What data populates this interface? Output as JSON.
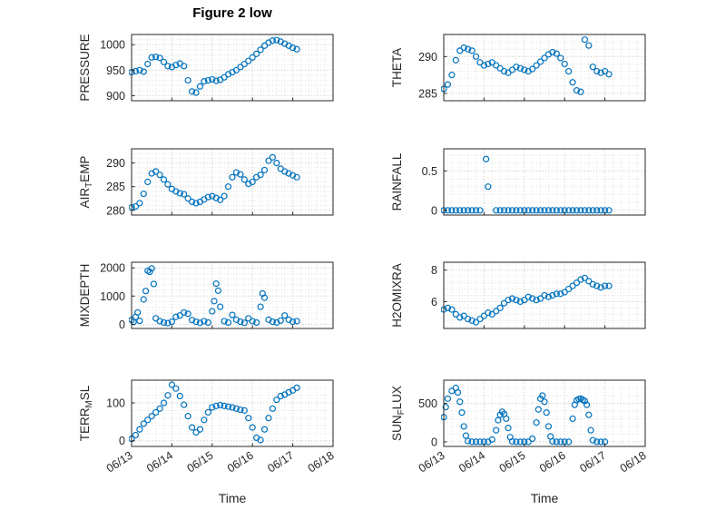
{
  "title": "Figure 2 low",
  "xlabel": "Time",
  "accent": "#0072BD",
  "axis_color": "#262626",
  "grid_major_color": "#c3c3c3",
  "grid_minor_color": "#e0e0e0",
  "xtick_labels": [
    "06/13",
    "06/14",
    "06/15",
    "06/16",
    "06/17",
    "06/18"
  ],
  "chart_data": [
    {
      "name": "pressure",
      "type": "scatter",
      "ylabel": "PRESSURE",
      "xlim": [
        13,
        18
      ],
      "ylim": [
        890,
        1020
      ],
      "yticks": [
        900,
        950,
        1000
      ],
      "x": [
        13.0,
        13.1,
        13.2,
        13.3,
        13.4,
        13.5,
        13.6,
        13.7,
        13.8,
        13.9,
        14.0,
        14.1,
        14.2,
        14.3,
        14.4,
        14.5,
        14.6,
        14.7,
        14.8,
        14.9,
        15.0,
        15.1,
        15.2,
        15.3,
        15.4,
        15.5,
        15.6,
        15.7,
        15.8,
        15.9,
        16.0,
        16.1,
        16.2,
        16.3,
        16.4,
        16.5,
        16.6,
        16.7,
        16.8,
        16.9,
        17.0,
        17.1
      ],
      "y": [
        946,
        948,
        950,
        947,
        962,
        975,
        976,
        974,
        966,
        958,
        956,
        960,
        963,
        958,
        930,
        908,
        906,
        918,
        928,
        930,
        932,
        929,
        931,
        936,
        942,
        946,
        950,
        956,
        962,
        968,
        975,
        982,
        990,
        998,
        1004,
        1008,
        1009,
        1006,
        1002,
        998,
        994,
        991
      ]
    },
    {
      "name": "theta",
      "type": "scatter",
      "ylabel": "THETA",
      "xlim": [
        13,
        18
      ],
      "ylim": [
        284,
        293
      ],
      "yticks": [
        285,
        290
      ],
      "x": [
        13.0,
        13.1,
        13.2,
        13.3,
        13.4,
        13.5,
        13.6,
        13.7,
        13.8,
        13.9,
        14.0,
        14.1,
        14.2,
        14.3,
        14.4,
        14.5,
        14.6,
        14.7,
        14.8,
        14.9,
        15.0,
        15.1,
        15.2,
        15.3,
        15.4,
        15.5,
        15.6,
        15.7,
        15.8,
        15.9,
        16.0,
        16.1,
        16.2,
        16.3,
        16.4,
        16.5,
        16.6,
        16.7,
        16.8,
        16.9,
        17.0,
        17.1
      ],
      "y": [
        285.6,
        286.2,
        287.5,
        289.5,
        290.8,
        291.2,
        291.0,
        290.8,
        290.0,
        289.2,
        288.8,
        289.0,
        289.2,
        288.8,
        288.4,
        288.0,
        287.8,
        288.2,
        288.6,
        288.4,
        288.2,
        288.0,
        288.3,
        288.8,
        289.3,
        289.8,
        290.3,
        290.6,
        290.4,
        289.8,
        289.0,
        288.0,
        286.5,
        285.4,
        285.2,
        292.3,
        291.5,
        288.6,
        288.0,
        287.8,
        288.0,
        287.6
      ]
    },
    {
      "name": "air_temp",
      "type": "scatter",
      "ylabel": "AIR_{T}EMP",
      "xlim": [
        13,
        18
      ],
      "ylim": [
        279,
        293
      ],
      "yticks": [
        280,
        285,
        290
      ],
      "x": [
        13.0,
        13.1,
        13.2,
        13.3,
        13.4,
        13.5,
        13.6,
        13.7,
        13.8,
        13.9,
        14.0,
        14.1,
        14.2,
        14.3,
        14.4,
        14.5,
        14.6,
        14.7,
        14.8,
        14.9,
        15.0,
        15.1,
        15.2,
        15.3,
        15.4,
        15.5,
        15.6,
        15.7,
        15.8,
        15.9,
        16.0,
        16.1,
        16.2,
        16.3,
        16.4,
        16.5,
        16.6,
        16.7,
        16.8,
        16.9,
        17.0,
        17.1
      ],
      "y": [
        280.6,
        280.8,
        281.5,
        283.5,
        286.0,
        287.8,
        288.2,
        287.5,
        286.5,
        285.5,
        284.5,
        284.0,
        283.6,
        283.4,
        282.5,
        281.8,
        281.5,
        281.8,
        282.3,
        282.8,
        283.0,
        282.6,
        282.2,
        283.0,
        285.0,
        287.0,
        288.0,
        287.6,
        286.5,
        285.6,
        286.0,
        287.0,
        287.5,
        288.5,
        290.5,
        291.2,
        290.0,
        288.8,
        288.2,
        287.8,
        287.4,
        287.0
      ]
    },
    {
      "name": "rainfall",
      "type": "scatter",
      "ylabel": "RAINFALL",
      "xlim": [
        13,
        18
      ],
      "ylim": [
        -0.06,
        0.78
      ],
      "yticks": [
        0,
        0.5
      ],
      "x": [
        13.0,
        13.1,
        13.2,
        13.3,
        13.4,
        13.5,
        13.6,
        13.7,
        13.8,
        13.9,
        14.05,
        14.1,
        14.3,
        14.4,
        14.5,
        14.6,
        14.7,
        14.8,
        14.9,
        15.0,
        15.1,
        15.2,
        15.3,
        15.4,
        15.5,
        15.6,
        15.7,
        15.8,
        15.9,
        16.0,
        16.1,
        16.2,
        16.3,
        16.4,
        16.5,
        16.6,
        16.7,
        16.8,
        16.9,
        17.0,
        17.1
      ],
      "y": [
        0,
        0,
        0,
        0,
        0,
        0,
        0,
        0,
        0,
        0,
        0.65,
        0.3,
        0,
        0,
        0,
        0,
        0,
        0,
        0,
        0,
        0,
        0,
        0,
        0,
        0,
        0,
        0,
        0,
        0,
        0,
        0,
        0,
        0,
        0,
        0,
        0,
        0,
        0,
        0,
        0,
        0
      ]
    },
    {
      "name": "mixdepth",
      "type": "scatter",
      "ylabel": "MIXDEPTH",
      "xlim": [
        13,
        18
      ],
      "ylim": [
        -150,
        2200
      ],
      "yticks": [
        0,
        1000,
        2000
      ],
      "x": [
        13.0,
        13.05,
        13.1,
        13.15,
        13.2,
        13.3,
        13.35,
        13.4,
        13.45,
        13.5,
        13.55,
        13.6,
        13.7,
        13.8,
        13.9,
        14.0,
        14.1,
        14.2,
        14.3,
        14.4,
        14.5,
        14.6,
        14.7,
        14.8,
        14.9,
        15.0,
        15.05,
        15.1,
        15.15,
        15.2,
        15.3,
        15.4,
        15.5,
        15.6,
        15.7,
        15.8,
        15.9,
        16.0,
        16.1,
        16.2,
        16.25,
        16.3,
        16.4,
        16.5,
        16.6,
        16.7,
        16.8,
        16.9,
        17.0,
        17.1
      ],
      "y": [
        150,
        80,
        260,
        420,
        120,
        880,
        1180,
        1900,
        1860,
        1980,
        1430,
        210,
        110,
        60,
        40,
        90,
        260,
        310,
        420,
        370,
        150,
        90,
        50,
        110,
        60,
        460,
        820,
        1440,
        1190,
        620,
        110,
        60,
        330,
        160,
        90,
        50,
        210,
        110,
        60,
        620,
        1090,
        940,
        160,
        90,
        60,
        130,
        310,
        160,
        90,
        110
      ]
    },
    {
      "name": "h2omixra",
      "type": "scatter",
      "ylabel": "H2OMIXRA",
      "xlim": [
        13,
        18
      ],
      "ylim": [
        4.3,
        8.5
      ],
      "yticks": [
        6,
        8
      ],
      "x": [
        13.0,
        13.1,
        13.2,
        13.3,
        13.4,
        13.5,
        13.6,
        13.7,
        13.8,
        13.9,
        14.0,
        14.1,
        14.2,
        14.3,
        14.4,
        14.5,
        14.6,
        14.7,
        14.8,
        14.9,
        15.0,
        15.1,
        15.2,
        15.3,
        15.4,
        15.5,
        15.6,
        15.7,
        15.8,
        15.9,
        16.0,
        16.1,
        16.2,
        16.3,
        16.4,
        16.5,
        16.6,
        16.7,
        16.8,
        16.9,
        17.0,
        17.1
      ],
      "y": [
        5.5,
        5.6,
        5.5,
        5.2,
        5.0,
        5.1,
        4.9,
        4.8,
        4.7,
        4.9,
        5.1,
        5.3,
        5.2,
        5.4,
        5.6,
        5.9,
        6.1,
        6.2,
        6.1,
        6.0,
        6.1,
        6.3,
        6.2,
        6.1,
        6.2,
        6.4,
        6.3,
        6.4,
        6.5,
        6.5,
        6.6,
        6.8,
        7.0,
        7.2,
        7.4,
        7.5,
        7.3,
        7.1,
        7.0,
        6.9,
        7.0,
        7.0
      ]
    },
    {
      "name": "terr_msl",
      "type": "scatter",
      "ylabel": "TERR_{M}SL",
      "xlim": [
        13,
        18
      ],
      "ylim": [
        -15,
        160
      ],
      "yticks": [
        0,
        100
      ],
      "x": [
        13.0,
        13.1,
        13.2,
        13.3,
        13.4,
        13.5,
        13.6,
        13.7,
        13.8,
        13.9,
        14.0,
        14.1,
        14.2,
        14.3,
        14.4,
        14.5,
        14.6,
        14.7,
        14.8,
        14.9,
        15.0,
        15.1,
        15.2,
        15.3,
        15.4,
        15.5,
        15.6,
        15.7,
        15.8,
        15.9,
        16.0,
        16.1,
        16.2,
        16.3,
        16.4,
        16.5,
        16.6,
        16.7,
        16.8,
        16.9,
        17.0,
        17.1
      ],
      "y": [
        5,
        15,
        30,
        45,
        55,
        65,
        75,
        85,
        100,
        120,
        148,
        138,
        118,
        95,
        65,
        35,
        22,
        30,
        55,
        75,
        88,
        92,
        94,
        92,
        90,
        88,
        85,
        82,
        80,
        60,
        35,
        8,
        2,
        30,
        60,
        85,
        108,
        118,
        122,
        128,
        133,
        140
      ]
    },
    {
      "name": "sun_flux",
      "type": "scatter",
      "ylabel": "SUN_{F}LUX",
      "xlim": [
        13,
        18
      ],
      "ylim": [
        -60,
        800
      ],
      "yticks": [
        0,
        500
      ],
      "x": [
        13.0,
        13.05,
        13.1,
        13.2,
        13.3,
        13.35,
        13.4,
        13.45,
        13.5,
        13.55,
        13.6,
        13.7,
        13.8,
        13.9,
        14.0,
        14.1,
        14.2,
        14.3,
        14.35,
        14.4,
        14.45,
        14.5,
        14.55,
        14.6,
        14.65,
        14.7,
        14.8,
        14.9,
        15.0,
        15.1,
        15.2,
        15.3,
        15.35,
        15.4,
        15.45,
        15.5,
        15.55,
        15.6,
        15.65,
        15.7,
        15.8,
        15.9,
        16.0,
        16.1,
        16.2,
        16.25,
        16.3,
        16.35,
        16.4,
        16.45,
        16.5,
        16.55,
        16.6,
        16.65,
        16.7,
        16.8,
        16.9,
        17.0
      ],
      "y": [
        320,
        450,
        560,
        660,
        700,
        640,
        520,
        380,
        200,
        80,
        10,
        0,
        0,
        0,
        0,
        0,
        30,
        150,
        280,
        350,
        390,
        360,
        300,
        180,
        60,
        5,
        0,
        0,
        0,
        0,
        40,
        250,
        420,
        560,
        600,
        520,
        380,
        200,
        70,
        5,
        0,
        0,
        0,
        0,
        300,
        480,
        540,
        555,
        560,
        545,
        530,
        480,
        350,
        150,
        20,
        0,
        0,
        0
      ]
    }
  ]
}
